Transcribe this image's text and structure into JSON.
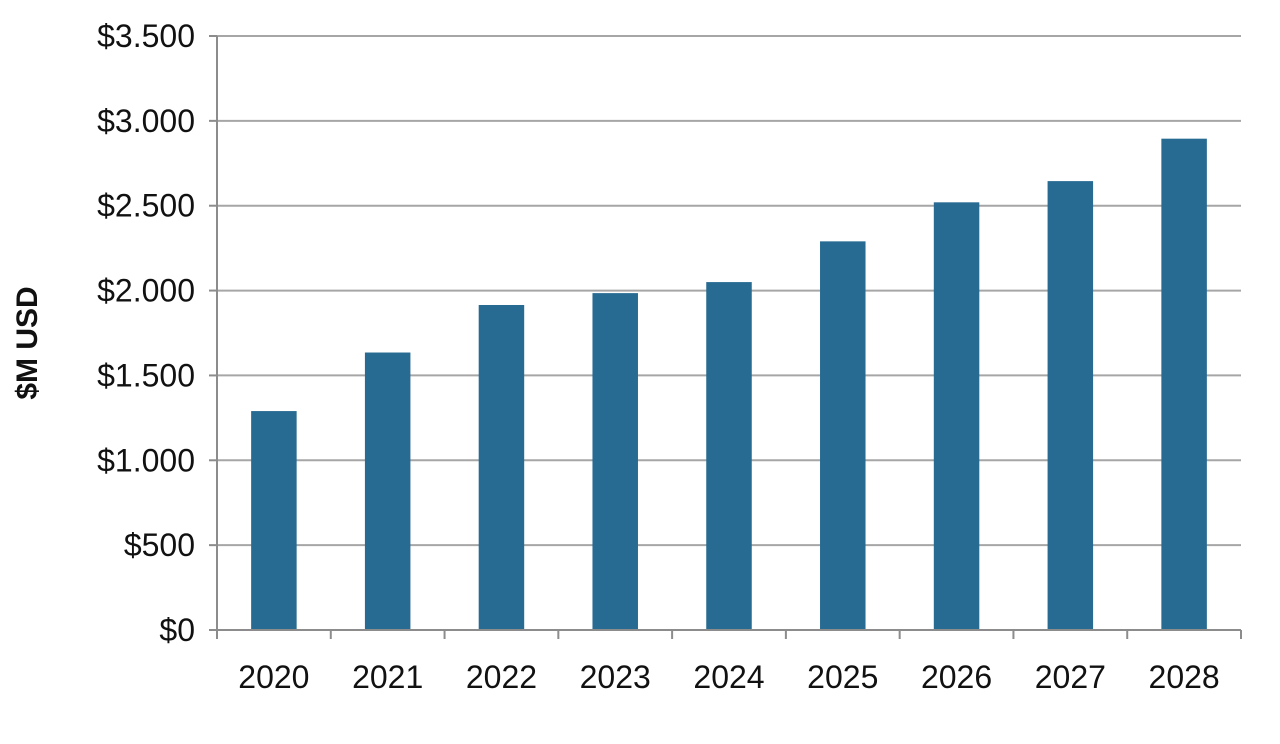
{
  "colors": {
    "bar": "#286b92",
    "grid": "#a6a6a6",
    "axis": "#8c8c8c",
    "text": "#111111"
  },
  "chart_data": {
    "type": "bar",
    "title": "",
    "xlabel": "",
    "ylabel": "$M USD",
    "categories": [
      "2020",
      "2021",
      "2022",
      "2023",
      "2024",
      "2025",
      "2026",
      "2027",
      "2028"
    ],
    "values": [
      1290,
      1635,
      1915,
      1985,
      2050,
      2290,
      2520,
      2645,
      2895
    ],
    "ylim": [
      0,
      3500
    ],
    "yticks": [
      0,
      500,
      1000,
      1500,
      2000,
      2500,
      3000,
      3500
    ],
    "ytick_labels": [
      "$0",
      "$500",
      "$1.000",
      "$1.500",
      "$2.000",
      "$2.500",
      "$3.000",
      "$3.500"
    ],
    "grid": "horizontal",
    "legend": "none"
  }
}
